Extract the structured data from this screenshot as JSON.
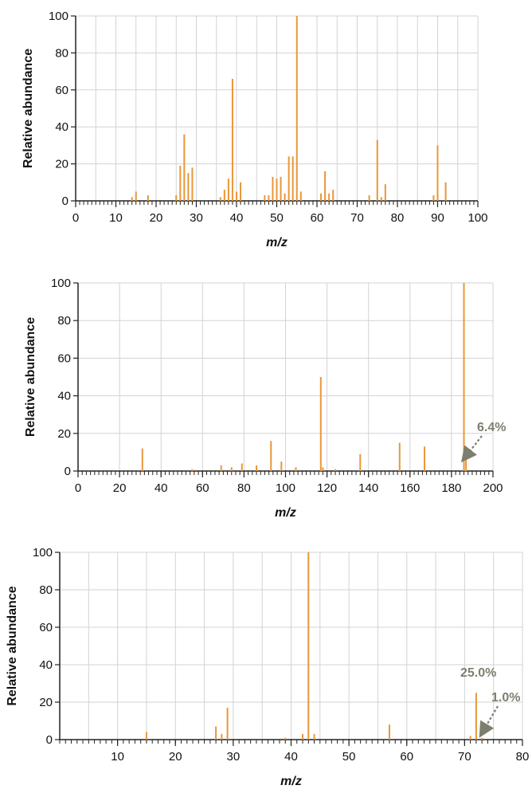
{
  "colors": {
    "peak": "#E8973A",
    "grid": "#d3d3d3",
    "axis": "#222222",
    "annotation": "#7d7f6e"
  },
  "chart_data": [
    {
      "type": "bar",
      "xlabel": "m/z",
      "ylabel": "Relative abundance",
      "xlim": [
        0,
        100
      ],
      "ylim": [
        0,
        100
      ],
      "x_ticks": [
        "0",
        "10",
        "20",
        "30",
        "40",
        "50",
        "60",
        "70",
        "80",
        "90",
        "100"
      ],
      "y_ticks": [
        "0",
        "20",
        "40",
        "60",
        "80",
        "100"
      ],
      "grid": true,
      "peaks": [
        {
          "x": 14,
          "y": 2
        },
        {
          "x": 15,
          "y": 5
        },
        {
          "x": 18,
          "y": 3
        },
        {
          "x": 25,
          "y": 3
        },
        {
          "x": 26,
          "y": 19
        },
        {
          "x": 27,
          "y": 36
        },
        {
          "x": 28,
          "y": 15
        },
        {
          "x": 29,
          "y": 18
        },
        {
          "x": 36,
          "y": 2
        },
        {
          "x": 37,
          "y": 6
        },
        {
          "x": 38,
          "y": 12
        },
        {
          "x": 39,
          "y": 66
        },
        {
          "x": 40,
          "y": 5
        },
        {
          "x": 41,
          "y": 10
        },
        {
          "x": 47,
          "y": 3
        },
        {
          "x": 48,
          "y": 3
        },
        {
          "x": 49,
          "y": 13
        },
        {
          "x": 50,
          "y": 12
        },
        {
          "x": 51,
          "y": 13
        },
        {
          "x": 52,
          "y": 4
        },
        {
          "x": 53,
          "y": 24
        },
        {
          "x": 54,
          "y": 24
        },
        {
          "x": 55,
          "y": 100
        },
        {
          "x": 56,
          "y": 5
        },
        {
          "x": 61,
          "y": 4
        },
        {
          "x": 62,
          "y": 16
        },
        {
          "x": 63,
          "y": 4
        },
        {
          "x": 64,
          "y": 6
        },
        {
          "x": 73,
          "y": 3
        },
        {
          "x": 75,
          "y": 33
        },
        {
          "x": 76,
          "y": 2
        },
        {
          "x": 77,
          "y": 9
        },
        {
          "x": 89,
          "y": 3
        },
        {
          "x": 90,
          "y": 30
        },
        {
          "x": 92,
          "y": 10
        }
      ],
      "annotations": []
    },
    {
      "type": "bar",
      "xlabel": "m/z",
      "ylabel": "Relative abundance",
      "xlim": [
        0,
        200
      ],
      "ylim": [
        0,
        100
      ],
      "x_ticks": [
        "0",
        "20",
        "40",
        "60",
        "80",
        "100",
        "120",
        "140",
        "160",
        "180",
        "200"
      ],
      "y_ticks": [
        "0",
        "20",
        "40",
        "60",
        "80",
        "100"
      ],
      "grid": true,
      "peaks": [
        {
          "x": 31,
          "y": 12
        },
        {
          "x": 55,
          "y": 1
        },
        {
          "x": 69,
          "y": 3
        },
        {
          "x": 74,
          "y": 2
        },
        {
          "x": 79,
          "y": 4
        },
        {
          "x": 86,
          "y": 3
        },
        {
          "x": 93,
          "y": 16
        },
        {
          "x": 98,
          "y": 5
        },
        {
          "x": 105,
          "y": 2
        },
        {
          "x": 117,
          "y": 50
        },
        {
          "x": 118,
          "y": 2
        },
        {
          "x": 124,
          "y": 1
        },
        {
          "x": 136,
          "y": 9
        },
        {
          "x": 155,
          "y": 15
        },
        {
          "x": 167,
          "y": 13
        },
        {
          "x": 186,
          "y": 100
        },
        {
          "x": 187,
          "y": 6.4
        }
      ],
      "annotations": [
        {
          "text": "6.4%",
          "peak_x": 187,
          "peak_y": 6.4
        }
      ]
    },
    {
      "type": "bar",
      "xlabel": "m/z",
      "ylabel": "Relative abundance",
      "xlim": [
        0,
        80
      ],
      "ylim": [
        0,
        100
      ],
      "x_ticks": [
        "10",
        "20",
        "30",
        "40",
        "50",
        "60",
        "70",
        "80"
      ],
      "y_ticks": [
        "0",
        "20",
        "40",
        "60",
        "80",
        "100"
      ],
      "grid": true,
      "peaks": [
        {
          "x": 15,
          "y": 4
        },
        {
          "x": 27,
          "y": 7
        },
        {
          "x": 28,
          "y": 3
        },
        {
          "x": 29,
          "y": 17
        },
        {
          "x": 39,
          "y": 1
        },
        {
          "x": 42,
          "y": 3
        },
        {
          "x": 43,
          "y": 100
        },
        {
          "x": 44,
          "y": 3
        },
        {
          "x": 57,
          "y": 8
        },
        {
          "x": 71,
          "y": 2
        },
        {
          "x": 72,
          "y": 25.0
        },
        {
          "x": 73,
          "y": 1.0
        }
      ],
      "annotations": [
        {
          "text": "25.0%",
          "peak_x": 72,
          "peak_y": 25.0
        },
        {
          "text": "1.0%",
          "peak_x": 73,
          "peak_y": 1.0
        }
      ]
    }
  ]
}
